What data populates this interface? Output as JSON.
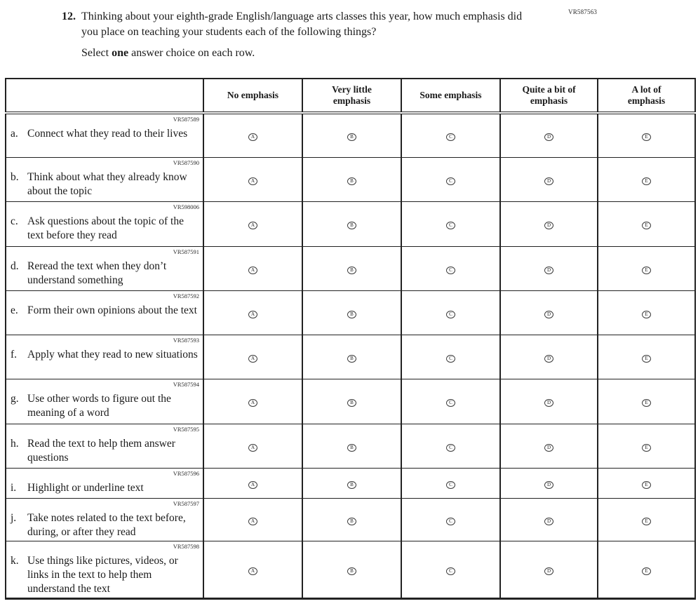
{
  "form_code": "VR587563",
  "question": {
    "number": "12.",
    "text": "Thinking about your eighth-grade English/language arts classes this year, how much emphasis did you place on teaching your students each of the following things?",
    "instruction_prefix": "Select ",
    "instruction_bold": "one",
    "instruction_suffix": " answer choice on each row."
  },
  "table": {
    "columns": [
      {
        "lines": [
          "No emphasis"
        ]
      },
      {
        "lines": [
          "Very little",
          "emphasis"
        ]
      },
      {
        "lines": [
          "Some emphasis"
        ]
      },
      {
        "lines": [
          "Quite a bit of",
          "emphasis"
        ]
      },
      {
        "lines": [
          "A lot of",
          "emphasis"
        ]
      }
    ],
    "option_letters": [
      "A",
      "B",
      "C",
      "D",
      "E"
    ],
    "rows": [
      {
        "letter": "a.",
        "code": "VR587589",
        "text": "Connect what they read to their lives"
      },
      {
        "letter": "b.",
        "code": "VR587590",
        "text": "Think about what they already know about the topic"
      },
      {
        "letter": "c.",
        "code": "VR598006",
        "text": "Ask questions about the topic of the text before they read"
      },
      {
        "letter": "d.",
        "code": "VR587591",
        "text": "Reread the text when they don’t understand something"
      },
      {
        "letter": "e.",
        "code": "VR587592",
        "text": "Form their own opinions about the text"
      },
      {
        "letter": "f.",
        "code": "VR587593",
        "text": "Apply what they read to new situations"
      },
      {
        "letter": "g.",
        "code": "VR587594",
        "text": "Use other words to figure out the meaning of a word"
      },
      {
        "letter": "h.",
        "code": "VR587595",
        "text": "Read the text to help them answer questions"
      },
      {
        "letter": "i.",
        "code": "VR587596",
        "text": "Highlight or underline text"
      },
      {
        "letter": "j.",
        "code": "VR587597",
        "text": "Take notes related to the text before, during, or after they read"
      },
      {
        "letter": "k.",
        "code": "VR587598",
        "text": "Use things like pictures, videos, or links in the text to help them understand the text"
      }
    ]
  },
  "colors": {
    "ink": "#1a1a1a",
    "border": "#222222",
    "background": "#ffffff"
  }
}
